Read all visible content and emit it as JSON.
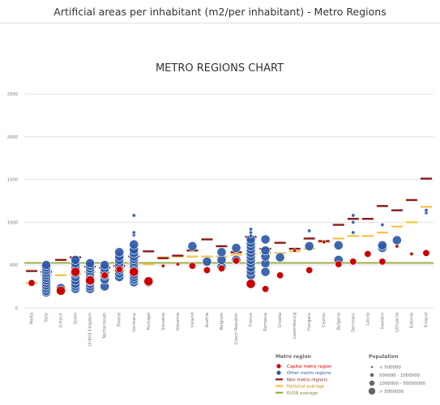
{
  "page_title": "Artificial areas per inhabitant (m2/per inhabitant) - Metro Regions",
  "colors": {
    "capital": "#cc0000",
    "other": "#2d5aa8",
    "non_metro": "#8b1a1a",
    "national": "#f5c242",
    "eu28": "#9aaa3c",
    "grid": "#d9d9d9",
    "text": "#555555"
  },
  "chart_data": {
    "type": "scatter",
    "title": "METRO REGIONS CHART",
    "xlabel": "",
    "ylabel": "",
    "ylim": [
      0,
      2500
    ],
    "yticks": [
      0,
      500,
      1000,
      1500,
      2000,
      2500
    ],
    "grid": true,
    "legend_placement": "bottom-right",
    "categories": [
      "Malta",
      "Italy",
      "Greece",
      "Spain",
      "United Kingdom",
      "Netherlands",
      "Poland",
      "Germany",
      "Portugal",
      "Slovakia",
      "Slovenia",
      "Ireland",
      "Austria",
      "Belgium",
      "Czech Republic",
      "France",
      "Romania",
      "Croatia",
      "Luxembourg",
      "Hungary",
      "Cyprus",
      "Bulgaria",
      "Denmark",
      "Latvia",
      "Sweden",
      "Lithuania",
      "Estonia",
      "Finland"
    ],
    "eu28_average": 525,
    "non_metro_region": [
      430,
      420,
      560,
      590,
      480,
      470,
      490,
      600,
      660,
      580,
      610,
      670,
      800,
      720,
      650,
      830,
      690,
      760,
      690,
      810,
      780,
      970,
      1040,
      1040,
      1190,
      1140,
      1260,
      1510
    ],
    "national_average": [
      290,
      380,
      380,
      390,
      420,
      410,
      440,
      520,
      510,
      590,
      600,
      600,
      600,
      600,
      620,
      630,
      640,
      640,
      660,
      690,
      770,
      810,
      840,
      840,
      880,
      950,
      1000,
      1180
    ],
    "capital_metro_region": [
      {
        "country": "Malta",
        "value": 290,
        "pop": 2
      },
      {
        "country": "Greece",
        "value": 200,
        "pop": 3
      },
      {
        "country": "Spain",
        "value": 420,
        "pop": 3
      },
      {
        "country": "United Kingdom",
        "value": 320,
        "pop": 3
      },
      {
        "country": "Netherlands",
        "value": 380,
        "pop": 2
      },
      {
        "country": "Poland",
        "value": 450,
        "pop": 2
      },
      {
        "country": "Germany",
        "value": 420,
        "pop": 3
      },
      {
        "country": "Portugal",
        "value": 310,
        "pop": 3
      },
      {
        "country": "Slovakia",
        "value": 490,
        "pop": 1
      },
      {
        "country": "Slovenia",
        "value": 510,
        "pop": 1
      },
      {
        "country": "Ireland",
        "value": 490,
        "pop": 2
      },
      {
        "country": "Austria",
        "value": 440,
        "pop": 2
      },
      {
        "country": "Belgium",
        "value": 460,
        "pop": 2
      },
      {
        "country": "Czech Republic",
        "value": 550,
        "pop": 2
      },
      {
        "country": "France",
        "value": 280,
        "pop": 3
      },
      {
        "country": "Romania",
        "value": 220,
        "pop": 2
      },
      {
        "country": "Croatia",
        "value": 380,
        "pop": 2
      },
      {
        "country": "Luxembourg",
        "value": 670,
        "pop": 1
      },
      {
        "country": "Hungary",
        "value": 440,
        "pop": 2
      },
      {
        "country": "Cyprus",
        "value": 770,
        "pop": 1
      },
      {
        "country": "Bulgaria",
        "value": 510,
        "pop": 2
      },
      {
        "country": "Denmark",
        "value": 540,
        "pop": 2
      },
      {
        "country": "Latvia",
        "value": 630,
        "pop": 2
      },
      {
        "country": "Sweden",
        "value": 540,
        "pop": 2
      },
      {
        "country": "Lithuania",
        "value": 720,
        "pop": 1
      },
      {
        "country": "Estonia",
        "value": 630,
        "pop": 1
      },
      {
        "country": "Finland",
        "value": 640,
        "pop": 2
      }
    ],
    "other_metro_regions": [
      {
        "country": "Italy",
        "values": [
          180,
          200,
          230,
          260,
          290,
          320,
          350,
          380,
          410,
          440,
          470,
          500
        ]
      },
      {
        "country": "Greece",
        "values": [
          230
        ]
      },
      {
        "country": "Spain",
        "values": [
          220,
          250,
          280,
          320,
          360,
          400,
          440,
          480,
          520,
          560
        ]
      },
      {
        "country": "United Kingdom",
        "values": [
          220,
          250,
          280,
          310,
          340,
          370,
          400,
          430,
          460,
          490,
          520
        ]
      },
      {
        "country": "Netherlands",
        "values": [
          250,
          330,
          380,
          420,
          460,
          500
        ]
      },
      {
        "country": "Poland",
        "values": [
          360,
          400,
          440,
          480,
          520,
          560,
          600,
          650
        ]
      },
      {
        "country": "Germany",
        "values": [
          300,
          330,
          360,
          390,
          420,
          450,
          480,
          510,
          540,
          570,
          600,
          640,
          680,
          740,
          850,
          880,
          1080
        ]
      },
      {
        "country": "Portugal",
        "values": [
          300
        ]
      },
      {
        "country": "Ireland",
        "values": [
          720
        ]
      },
      {
        "country": "Austria",
        "values": [
          540
        ]
      },
      {
        "country": "Belgium",
        "values": [
          480,
          560,
          650
        ]
      },
      {
        "country": "Czech Republic",
        "values": [
          560,
          700
        ]
      },
      {
        "country": "France",
        "values": [
          380,
          430,
          470,
          520,
          560,
          600,
          640,
          680,
          720,
          760,
          800,
          840,
          880,
          920
        ]
      },
      {
        "country": "Romania",
        "values": [
          420,
          520,
          600,
          670,
          800
        ]
      },
      {
        "country": "Croatia",
        "values": [
          590
        ]
      },
      {
        "country": "Hungary",
        "values": [
          720,
          900
        ]
      },
      {
        "country": "Bulgaria",
        "values": [
          560,
          730
        ]
      },
      {
        "country": "Denmark",
        "values": [
          880,
          1000,
          1080
        ]
      },
      {
        "country": "Sweden",
        "values": [
          700,
          730,
          970
        ]
      },
      {
        "country": "Lithuania",
        "values": [
          790
        ]
      },
      {
        "country": "Finland",
        "values": [
          1110,
          1140
        ]
      }
    ],
    "legend": {
      "metro_title": "Metro region",
      "metro_items": [
        "Capital metro region",
        "Other metro regions",
        "Non metro regions",
        "National average",
        "EU28 average"
      ],
      "population_title": "Population",
      "population_items": [
        "< 500000",
        "500000 - 1000000",
        "1000000 - 50000000",
        "> 5000000"
      ]
    }
  }
}
